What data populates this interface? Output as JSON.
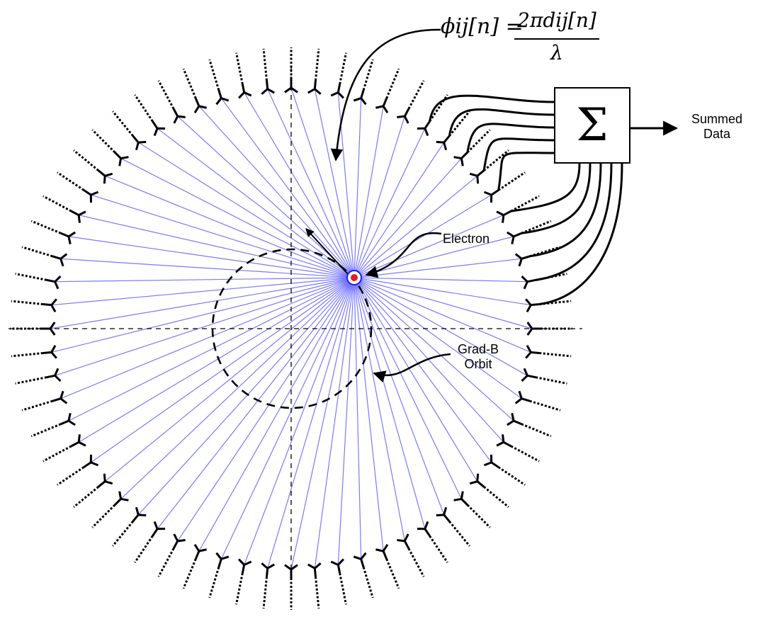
{
  "formula": {
    "lhs": "ϕij[n] =",
    "numerator": "2πdij[n]",
    "denominator": "λ"
  },
  "summer": {
    "symbol": "Σ",
    "output_label_line1": "Summed",
    "output_label_line2": "Data"
  },
  "electron": {
    "label": "Electron"
  },
  "orbit": {
    "label_line1": "Grad-B",
    "label_line2": "Orbit"
  },
  "array": {
    "antenna_count": 64,
    "connected_antenna_count": 10
  },
  "colors": {
    "ray": "#6b6bff",
    "electron_core": "#e02020",
    "electron_ring": "#1a1aff",
    "ink": "#000000"
  }
}
